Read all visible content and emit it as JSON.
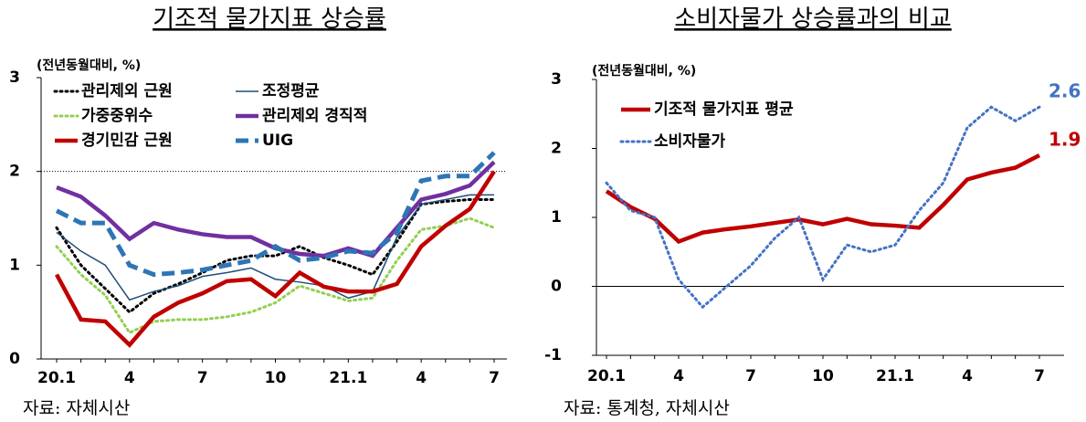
{
  "chart_data": [
    {
      "type": "line",
      "title": "기조적 물가지표 상승률",
      "subtitle": "(전년동월대비, %)",
      "source": "자료: 자체시산",
      "categories": [
        "20.1",
        null,
        null,
        "4",
        null,
        null,
        "7",
        null,
        null,
        "10",
        null,
        null,
        "21.1",
        null,
        null,
        "4",
        null,
        null,
        "7"
      ],
      "ylim": [
        0,
        3
      ],
      "yticks": [
        0,
        1,
        2,
        3
      ],
      "reference_y": 2,
      "series": [
        {
          "name": "관리제외 근원",
          "color": "#000000",
          "dash": "dotted",
          "weight": "thick",
          "values": [
            1.4,
            1.0,
            0.75,
            0.5,
            0.7,
            0.8,
            0.92,
            1.05,
            1.1,
            1.1,
            1.2,
            1.08,
            1.0,
            0.9,
            1.25,
            1.65,
            1.68,
            1.7,
            1.7
          ]
        },
        {
          "name": "조정평균",
          "color": "#1f4e79",
          "dash": "solid",
          "weight": "thin",
          "values": [
            1.35,
            1.15,
            1.0,
            0.63,
            0.72,
            0.78,
            0.88,
            0.92,
            0.97,
            0.85,
            0.82,
            0.78,
            0.65,
            0.72,
            1.3,
            1.65,
            1.7,
            1.75,
            1.75
          ]
        },
        {
          "name": "가중중위수",
          "color": "#92d050",
          "dash": "dotted",
          "weight": "thick",
          "values": [
            1.2,
            0.9,
            0.68,
            0.28,
            0.4,
            0.42,
            0.42,
            0.45,
            0.5,
            0.6,
            0.78,
            0.7,
            0.62,
            0.65,
            1.05,
            1.38,
            1.42,
            1.5,
            1.4
          ]
        },
        {
          "name": "관리제외 경직적",
          "color": "#7030a0",
          "dash": "solid",
          "weight": "thick",
          "values": [
            1.83,
            1.73,
            1.53,
            1.28,
            1.45,
            1.38,
            1.33,
            1.3,
            1.3,
            1.18,
            1.12,
            1.1,
            1.18,
            1.1,
            1.4,
            1.7,
            1.76,
            1.85,
            2.1
          ]
        },
        {
          "name": "경기민감 근원",
          "color": "#c00000",
          "dash": "solid",
          "weight": "thick",
          "values": [
            0.9,
            0.42,
            0.4,
            0.15,
            0.45,
            0.6,
            0.7,
            0.83,
            0.85,
            0.67,
            0.92,
            0.77,
            0.72,
            0.72,
            0.8,
            1.2,
            1.42,
            1.6,
            2.0
          ]
        },
        {
          "name": "UIG",
          "color": "#2e75b6",
          "dash": "dashed",
          "weight": "thick",
          "values": [
            1.58,
            1.45,
            1.45,
            1.0,
            0.9,
            0.92,
            0.95,
            1.0,
            1.05,
            1.2,
            1.05,
            1.08,
            1.15,
            1.13,
            1.35,
            1.9,
            1.95,
            1.95,
            2.2
          ]
        }
      ]
    },
    {
      "type": "line",
      "title": "소비자물가 상승률과의 비교",
      "subtitle": "(전년동월대비, %)",
      "source": "자료: 통계청, 자체시산",
      "categories": [
        "20.1",
        null,
        null,
        "4",
        null,
        null,
        "7",
        null,
        null,
        "10",
        null,
        null,
        "21.1",
        null,
        null,
        "4",
        null,
        null,
        "7"
      ],
      "ylim": [
        -1,
        3
      ],
      "yticks": [
        -1,
        0,
        1,
        2,
        3
      ],
      "reference_y": 0,
      "series": [
        {
          "name": "기조적 물가지표 평균",
          "color": "#c00000",
          "dash": "solid",
          "weight": "thick",
          "end_label": true,
          "values": [
            1.38,
            1.15,
            0.98,
            0.65,
            0.78,
            0.83,
            0.87,
            0.92,
            0.97,
            0.9,
            0.98,
            0.9,
            0.88,
            0.85,
            1.18,
            1.55,
            1.65,
            1.72,
            1.9
          ]
        },
        {
          "name": "소비자물가",
          "color": "#4472c4",
          "dash": "dotted",
          "weight": "thick",
          "end_label": true,
          "values": [
            1.5,
            1.1,
            1.0,
            0.1,
            -0.3,
            0.0,
            0.3,
            0.7,
            1.0,
            0.1,
            0.6,
            0.5,
            0.6,
            1.1,
            1.5,
            2.3,
            2.6,
            2.4,
            2.6
          ]
        }
      ]
    }
  ]
}
